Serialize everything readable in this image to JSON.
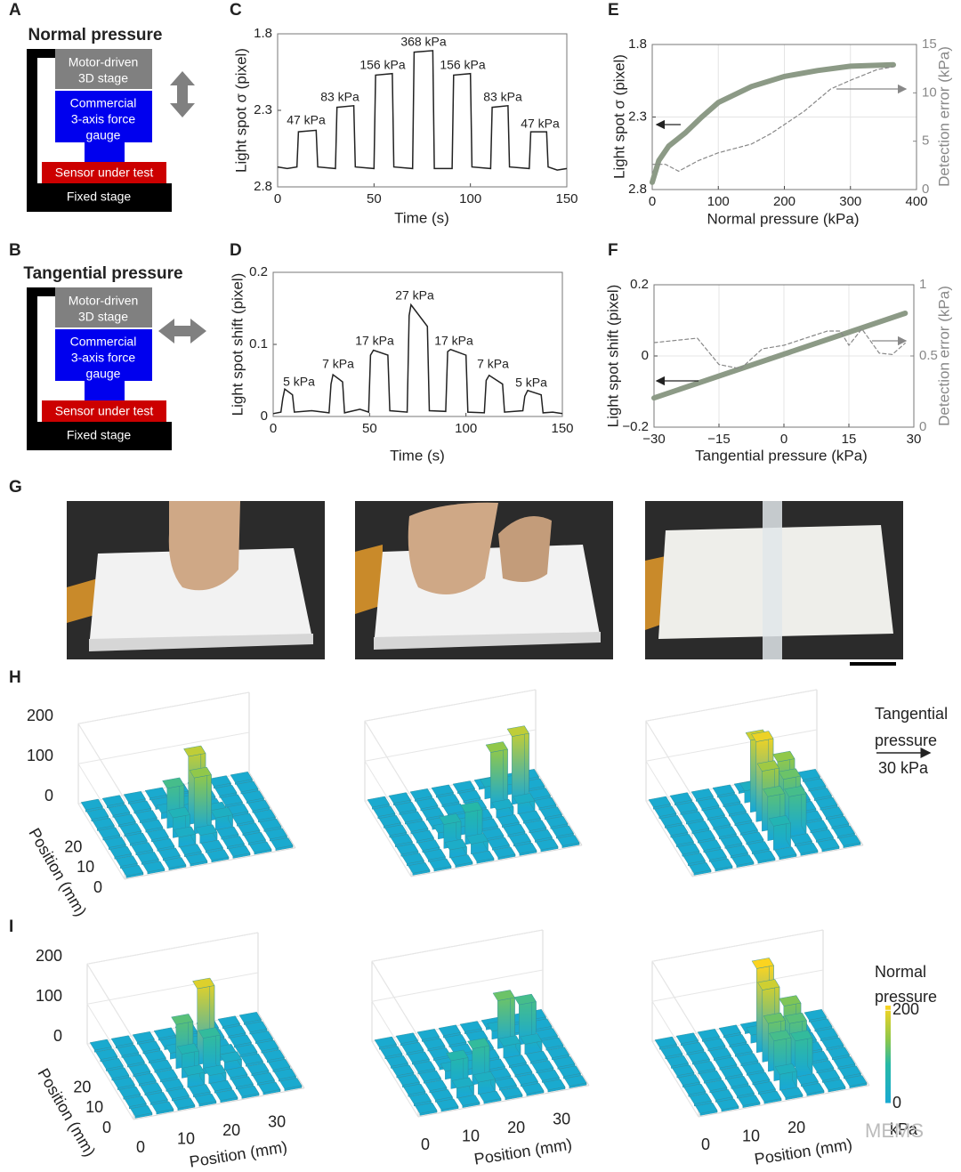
{
  "panels": [
    "A",
    "B",
    "C",
    "D",
    "E",
    "F",
    "G",
    "H",
    "I"
  ],
  "diagram_a": {
    "title": "Normal pressure",
    "stage": [
      "Motor-driven",
      "3D stage"
    ],
    "gauge": [
      "Commercial",
      "3-axis force",
      "gauge"
    ],
    "sensor": "Sensor under test",
    "fixed": "Fixed stage"
  },
  "diagram_b": {
    "title": "Tangential pressure",
    "stage": [
      "Motor-driven",
      "3D stage"
    ],
    "gauge": [
      "Commercial",
      "3-axis force",
      "gauge"
    ],
    "sensor": "Sensor under test",
    "fixed": "Fixed stage"
  },
  "chart_data": [
    {
      "type": "line",
      "xlabel": "Time (s)",
      "ylabel": "Light spot σ (pixel)",
      "xlim": [
        0,
        150
      ],
      "xticks": [
        0,
        50,
        100,
        150
      ],
      "ylim": [
        2.8,
        1.8
      ],
      "yticks": [
        1.8,
        2.3,
        2.8
      ],
      "color": "#222222",
      "x": [
        0,
        5,
        10,
        10.8,
        20,
        20.8,
        30,
        30.8,
        39.5,
        40.3,
        50,
        50.8,
        59.5,
        60.3,
        70,
        70.8,
        80.5,
        81.3,
        90.5,
        91.3,
        100,
        100.8,
        110.5,
        111.3,
        119.5,
        120.3,
        130.5,
        131.3,
        139.5,
        140.3,
        145,
        150
      ],
      "values": [
        2.67,
        2.68,
        2.67,
        2.44,
        2.43,
        2.67,
        2.68,
        2.28,
        2.27,
        2.67,
        2.68,
        2.07,
        2.06,
        2.67,
        2.68,
        1.92,
        1.91,
        2.68,
        2.68,
        2.07,
        2.06,
        2.67,
        2.68,
        2.28,
        2.27,
        2.67,
        2.68,
        2.44,
        2.44,
        2.67,
        2.69,
        2.68
      ],
      "annotations": [
        "47 kPa",
        "83 kPa",
        "156 kPa",
        "368 kPa",
        "156 kPa",
        "83 kPa",
        "47 kPa"
      ]
    },
    {
      "type": "line",
      "xlabel": "Time (s)",
      "ylabel": "Light spot shift (pixel)",
      "xlim": [
        0,
        150
      ],
      "xticks": [
        0,
        50,
        100,
        150
      ],
      "ylim": [
        0,
        0.2
      ],
      "yticks": [
        0,
        0.1,
        0.2
      ],
      "color": "#222222",
      "x": [
        0,
        4,
        5,
        6,
        10,
        11,
        20,
        29,
        30,
        31,
        36,
        37,
        45,
        49.5,
        50.5,
        52,
        59.5,
        60.5,
        69.5,
        70.5,
        71.5,
        80,
        81,
        89.5,
        90.5,
        92,
        100,
        101,
        109.5,
        110.5,
        112,
        119,
        120,
        129.5,
        130.5,
        132,
        139,
        140,
        145,
        150
      ],
      "values": [
        0.004,
        0.006,
        0.025,
        0.038,
        0.03,
        0.006,
        0.008,
        0.005,
        0.045,
        0.058,
        0.048,
        0.005,
        0.01,
        0.006,
        0.085,
        0.092,
        0.085,
        0.008,
        0.006,
        0.14,
        0.155,
        0.125,
        0.008,
        0.007,
        0.09,
        0.093,
        0.085,
        0.006,
        0.005,
        0.05,
        0.057,
        0.045,
        0.006,
        0.008,
        0.028,
        0.036,
        0.03,
        0.005,
        0.006,
        0.004
      ],
      "annotations": [
        "5 kPa",
        "7 kPa",
        "17 kPa",
        "27 kPa",
        "17 kPa",
        "7 kPa",
        "5 kPa"
      ]
    },
    {
      "type": "dual",
      "xlabel": "Normal pressure (kPa)",
      "ylabel": "Light spot σ (pixel)",
      "y2label": "Detection error (kPa)",
      "xlim": [
        0,
        400
      ],
      "xticks": [
        0,
        100,
        200,
        300,
        400
      ],
      "ylim": [
        2.8,
        1.8
      ],
      "yticks": [
        1.8,
        2.3,
        2.8
      ],
      "y2lim": [
        0,
        15
      ],
      "y2ticks": [
        0,
        5,
        10,
        15
      ],
      "grid": true,
      "series": [
        {
          "color": "#8c9a86",
          "x": [
            0,
            10,
            25,
            50,
            75,
            100,
            150,
            200,
            250,
            300,
            365
          ],
          "values": [
            2.75,
            2.6,
            2.5,
            2.41,
            2.3,
            2.2,
            2.09,
            2.02,
            1.98,
            1.95,
            1.94
          ]
        },
        {
          "color": "#888888",
          "dash": true,
          "axis": "y2",
          "x": [
            0,
            20,
            40,
            70,
            100,
            150,
            180,
            230,
            270,
            300,
            340,
            365
          ],
          "values": [
            2.6,
            2.6,
            1.9,
            3,
            3.8,
            4.7,
            5.8,
            8.1,
            10.4,
            11.3,
            12.4,
            12.7
          ]
        }
      ]
    },
    {
      "type": "dual",
      "xlabel": "Tangential pressure (kPa)",
      "ylabel": "Light spot shift (pixel)",
      "y2label": "Detection error (kPa)",
      "xlim": [
        -30,
        30
      ],
      "xticks": [
        {
          "value": -30,
          "label": "−30"
        },
        {
          "value": -15,
          "label": "−15"
        },
        0,
        15,
        30
      ],
      "ylim": [
        -0.2,
        0.2
      ],
      "yticks": [
        {
          "value": -0.2,
          "label": "−0.2"
        },
        0,
        0.2
      ],
      "y2lim": [
        0,
        1
      ],
      "y2ticks": [
        0,
        0.5,
        1
      ],
      "grid": true,
      "series": [
        {
          "color": "#8c9a86",
          "x": [
            -30,
            28
          ],
          "values": [
            -0.118,
            0.12
          ]
        },
        {
          "color": "#888888",
          "dash": true,
          "axis": "y2",
          "x": [
            -30,
            -20,
            -15,
            -10,
            -5,
            0,
            10,
            13,
            15,
            18,
            22,
            25,
            28
          ],
          "values": [
            0.594,
            0.625,
            0.44,
            0.41,
            0.55,
            0.575,
            0.675,
            0.675,
            0.575,
            0.69,
            0.52,
            0.51,
            0.59
          ]
        }
      ]
    }
  ],
  "bars3d": {
    "zticks": [
      0,
      100,
      200
    ],
    "yticks": [
      0,
      10,
      20
    ],
    "xticks": [
      0,
      10,
      20,
      30
    ],
    "ylabel": "Position (mm)",
    "xlabel": "Position (mm)",
    "H": [
      [
        [
          5,
          5,
          5,
          5,
          5,
          5,
          5,
          5
        ],
        [
          5,
          5,
          5,
          5,
          5,
          5,
          5,
          5
        ],
        [
          5,
          5,
          5,
          25,
          20,
          5,
          5,
          5
        ],
        [
          5,
          5,
          5,
          50,
          140,
          30,
          5,
          5
        ],
        [
          5,
          5,
          5,
          100,
          170,
          20,
          5,
          5
        ],
        [
          5,
          5,
          5,
          15,
          25,
          5,
          5,
          5
        ],
        [
          5,
          5,
          5,
          5,
          5,
          5,
          5,
          5
        ],
        [
          5,
          5,
          5,
          5,
          5,
          5,
          5,
          5
        ]
      ],
      [
        [
          5,
          5,
          5,
          5,
          5,
          5,
          5,
          5
        ],
        [
          5,
          5,
          20,
          25,
          5,
          5,
          5,
          5
        ],
        [
          5,
          5,
          60,
          80,
          5,
          5,
          5,
          5
        ],
        [
          5,
          5,
          15,
          20,
          5,
          5,
          5,
          5
        ],
        [
          5,
          5,
          5,
          5,
          5,
          20,
          25,
          5
        ],
        [
          5,
          5,
          5,
          5,
          5,
          140,
          170,
          5
        ],
        [
          5,
          5,
          5,
          5,
          5,
          30,
          25,
          5
        ],
        [
          5,
          5,
          5,
          5,
          5,
          5,
          5,
          5
        ]
      ],
      [
        [
          5,
          5,
          5,
          5,
          5,
          5,
          5,
          5
        ],
        [
          5,
          5,
          5,
          5,
          60,
          5,
          5,
          5
        ],
        [
          5,
          5,
          5,
          5,
          110,
          100,
          5,
          5
        ],
        [
          5,
          5,
          5,
          5,
          150,
          120,
          5,
          5
        ],
        [
          5,
          5,
          5,
          5,
          200,
          140,
          5,
          5
        ],
        [
          5,
          5,
          5,
          5,
          180,
          20,
          5,
          5
        ],
        [
          5,
          5,
          5,
          5,
          30,
          5,
          5,
          5
        ],
        [
          5,
          5,
          5,
          5,
          5,
          5,
          5,
          5
        ]
      ]
    ],
    "I": [
      [
        [
          5,
          5,
          5,
          5,
          5,
          5,
          5,
          5
        ],
        [
          5,
          5,
          5,
          5,
          5,
          5,
          5,
          5
        ],
        [
          5,
          5,
          5,
          30,
          20,
          5,
          5,
          5
        ],
        [
          5,
          5,
          5,
          60,
          90,
          20,
          5,
          5
        ],
        [
          5,
          5,
          5,
          110,
          190,
          15,
          5,
          5
        ],
        [
          5,
          5,
          5,
          15,
          25,
          5,
          5,
          5
        ],
        [
          5,
          5,
          5,
          5,
          5,
          5,
          5,
          5
        ],
        [
          5,
          5,
          5,
          5,
          5,
          5,
          5,
          5
        ]
      ],
      [
        [
          5,
          5,
          5,
          5,
          5,
          5,
          5,
          5
        ],
        [
          5,
          5,
          25,
          30,
          5,
          5,
          5,
          5
        ],
        [
          5,
          5,
          70,
          90,
          5,
          5,
          5,
          5
        ],
        [
          5,
          5,
          20,
          15,
          5,
          5,
          5,
          5
        ],
        [
          5,
          5,
          5,
          5,
          5,
          30,
          25,
          5
        ],
        [
          5,
          5,
          5,
          5,
          5,
          120,
          100,
          5
        ],
        [
          5,
          5,
          5,
          5,
          5,
          20,
          5,
          5
        ],
        [
          5,
          5,
          5,
          5,
          5,
          5,
          5,
          5
        ]
      ],
      [
        [
          5,
          5,
          5,
          5,
          5,
          5,
          5,
          5
        ],
        [
          5,
          5,
          5,
          5,
          40,
          5,
          5,
          5
        ],
        [
          5,
          5,
          5,
          5,
          100,
          90,
          5,
          5
        ],
        [
          5,
          5,
          5,
          5,
          120,
          110,
          5,
          5
        ],
        [
          5,
          5,
          5,
          5,
          180,
          130,
          5,
          5
        ],
        [
          5,
          5,
          5,
          5,
          210,
          30,
          5,
          5
        ],
        [
          5,
          5,
          5,
          5,
          20,
          5,
          5,
          5
        ],
        [
          5,
          5,
          5,
          5,
          5,
          5,
          5,
          5
        ]
      ]
    ]
  },
  "legend_h": {
    "title": [
      "Tangential",
      "pressure"
    ],
    "scale": "30 kPa"
  },
  "legend_i": {
    "title": [
      "Normal",
      "pressure"
    ],
    "lim": [
      0,
      210
    ],
    "ticks": [
      0,
      200
    ],
    "unit": "kPa"
  },
  "watermark": "MEMS"
}
